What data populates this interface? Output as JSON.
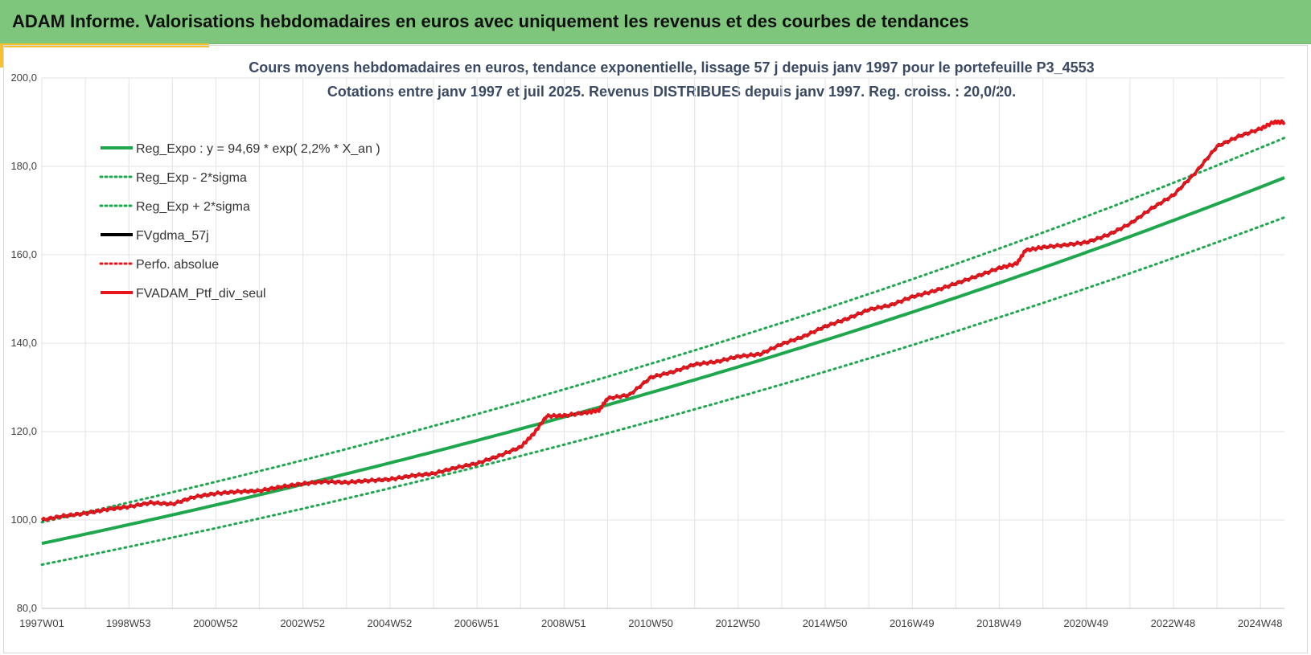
{
  "header": {
    "title": "ADAM Informe. Valorisations hebdomadaires en euros avec uniquement les revenus et des courbes de tendances"
  },
  "colors": {
    "header_bg": "#7dc67b",
    "accent": "#f6c12a",
    "regression": "#1fa74e",
    "smoothed": "#000000",
    "portfolio": "#e8141c",
    "grid": "#e3e3e3"
  },
  "chart_data": {
    "type": "line",
    "title": "Cours moyens hebdomadaires  en euros, tendance exponentielle, lissage 57 j depuis janv 1997 pour le portefeuille P3_4553",
    "subtitle": "Cotations entre janv 1997 et juil 2025. Revenus DISTRIBUES depuis janv 1997. Reg. croiss. : 20,0/20.",
    "xlabel": "",
    "ylabel": "",
    "ylim": [
      80,
      200
    ],
    "y_ticks": [
      "80,0",
      "100,0",
      "120,0",
      "140,0",
      "160,0",
      "180,0",
      "200,0"
    ],
    "x_ticks": [
      "1997W01",
      "1998W53",
      "2000W52",
      "2002W52",
      "2004W52",
      "2006W51",
      "2008W51",
      "2010W50",
      "2012W50",
      "2014W50",
      "2016W49",
      "2018W49",
      "2020W49",
      "2022W48",
      "2024W48"
    ],
    "x_range": [
      1997.0,
      2025.55
    ],
    "grid": true,
    "legend_position": "top-left",
    "legend": [
      {
        "label": "Reg_Expo : y = 94,69 * exp( 2,2% *  X_an )",
        "color": "#1fa74e",
        "style": "solid"
      },
      {
        "label": "Reg_Exp - 2*sigma",
        "color": "#1fa74e",
        "style": "dotted"
      },
      {
        "label": "Reg_Exp + 2*sigma",
        "color": "#1fa74e",
        "style": "dotted"
      },
      {
        "label": "FVgdma_57j",
        "color": "#000000",
        "style": "solid"
      },
      {
        "label": "Perfo. absolue",
        "color": "#e8141c",
        "style": "dotted"
      },
      {
        "label": "FVADAM_Ptf_div_seul",
        "color": "#e8141c",
        "style": "solid"
      }
    ],
    "regression": {
      "a": 94.69,
      "rate": 0.022,
      "x0": 1997.0
    },
    "series": [
      {
        "name": "Reg_Expo : y = 94,69 * exp( 2,2% *  X_an )",
        "x": [
          1997.0,
          1999.0,
          2001.0,
          2003.0,
          2005.0,
          2007.0,
          2009.0,
          2011.0,
          2013.0,
          2015.0,
          2017.0,
          2019.0,
          2021.0,
          2023.0,
          2025.55
        ],
        "values": [
          94.7,
          98.9,
          103.4,
          108.1,
          113.0,
          118.1,
          123.5,
          129.1,
          135.0,
          141.1,
          147.5,
          154.2,
          161.2,
          168.5,
          178.6
        ]
      },
      {
        "name": "Reg_Exp - 2*sigma",
        "x": [
          1997.0,
          1999.0,
          2001.0,
          2003.0,
          2005.0,
          2007.0,
          2009.0,
          2011.0,
          2013.0,
          2015.0,
          2017.0,
          2019.0,
          2021.0,
          2023.0,
          2025.55
        ],
        "values": [
          89.9,
          94.0,
          98.2,
          102.7,
          107.3,
          112.2,
          117.3,
          122.6,
          128.2,
          134.0,
          140.1,
          146.5,
          153.1,
          160.1,
          169.8
        ]
      },
      {
        "name": "Reg_Exp + 2*sigma",
        "x": [
          1997.0,
          1999.0,
          2001.0,
          2003.0,
          2005.0,
          2007.0,
          2009.0,
          2011.0,
          2013.0,
          2015.0,
          2017.0,
          2019.0,
          2021.0,
          2023.0,
          2025.55
        ],
        "values": [
          99.5,
          104.0,
          108.7,
          113.6,
          118.8,
          124.2,
          129.8,
          135.7,
          141.8,
          148.3,
          155.0,
          162.0,
          169.4,
          177.1,
          187.8
        ]
      },
      {
        "name": "FVgdma_57j",
        "x": [
          1997.0,
          1997.5,
          1998.0,
          1998.5,
          1999.0,
          1999.5,
          2000.0,
          2000.5,
          2001.0,
          2001.5,
          2002.0,
          2002.5,
          2003.0,
          2003.5,
          2004.0,
          2004.5,
          2005.0,
          2005.5,
          2006.0,
          2006.5,
          2007.0,
          2007.5,
          2008.0,
          2008.3,
          2008.6,
          2009.0,
          2009.5,
          2009.8,
          2010.0,
          2010.5,
          2011.0,
          2011.5,
          2012.0,
          2012.5,
          2013.0,
          2013.5,
          2014.0,
          2014.5,
          2015.0,
          2015.5,
          2016.0,
          2016.5,
          2017.0,
          2017.5,
          2018.0,
          2018.5,
          2019.0,
          2019.4,
          2019.6,
          2020.0,
          2020.5,
          2021.0,
          2021.5,
          2022.0,
          2022.5,
          2023.0,
          2023.5,
          2024.0,
          2024.5,
          2025.0,
          2025.3,
          2025.55
        ],
        "values": [
          100.0,
          100.9,
          101.5,
          102.4,
          103.0,
          103.9,
          103.6,
          105.2,
          106.0,
          106.4,
          106.6,
          107.5,
          108.2,
          108.7,
          108.5,
          108.9,
          109.2,
          110.0,
          110.5,
          111.8,
          112.8,
          114.5,
          116.5,
          119.5,
          123.5,
          123.6,
          124.3,
          124.8,
          127.5,
          128.3,
          132.3,
          133.5,
          135.2,
          135.8,
          137.0,
          137.5,
          139.8,
          141.5,
          143.8,
          145.5,
          147.6,
          148.6,
          150.5,
          151.8,
          153.5,
          155.2,
          157.0,
          158.0,
          161.0,
          161.7,
          162.2,
          162.8,
          164.5,
          167.0,
          170.5,
          173.5,
          178.5,
          184.5,
          186.8,
          188.5,
          190.0,
          190.0
        ]
      },
      {
        "name": "FVADAM_Ptf_div_seul",
        "x": [
          1997.0,
          1997.5,
          1998.0,
          1998.5,
          1999.0,
          1999.5,
          2000.0,
          2000.5,
          2001.0,
          2001.5,
          2002.0,
          2002.5,
          2003.0,
          2003.5,
          2004.0,
          2004.5,
          2005.0,
          2005.5,
          2006.0,
          2006.5,
          2007.0,
          2007.5,
          2008.0,
          2008.3,
          2008.6,
          2009.0,
          2009.5,
          2009.8,
          2010.0,
          2010.5,
          2011.0,
          2011.5,
          2012.0,
          2012.5,
          2013.0,
          2013.5,
          2014.0,
          2014.5,
          2015.0,
          2015.5,
          2016.0,
          2016.5,
          2017.0,
          2017.5,
          2018.0,
          2018.5,
          2019.0,
          2019.4,
          2019.6,
          2020.0,
          2020.5,
          2021.0,
          2021.5,
          2022.0,
          2022.5,
          2023.0,
          2023.5,
          2024.0,
          2024.5,
          2025.0,
          2025.3,
          2025.55
        ],
        "values": [
          100.0,
          100.9,
          101.5,
          102.4,
          103.0,
          103.9,
          103.6,
          105.2,
          106.0,
          106.4,
          106.6,
          107.5,
          108.2,
          108.7,
          108.5,
          108.9,
          109.2,
          110.0,
          110.5,
          111.8,
          112.8,
          114.5,
          116.5,
          119.5,
          123.5,
          123.6,
          124.3,
          124.8,
          127.5,
          128.3,
          132.3,
          133.5,
          135.2,
          135.8,
          137.0,
          137.5,
          139.8,
          141.5,
          143.8,
          145.5,
          147.6,
          148.6,
          150.5,
          151.8,
          153.5,
          155.2,
          157.0,
          158.0,
          161.0,
          161.7,
          162.2,
          162.8,
          164.5,
          167.0,
          170.5,
          173.5,
          178.5,
          184.5,
          186.8,
          188.5,
          190.0,
          190.0
        ]
      }
    ]
  }
}
